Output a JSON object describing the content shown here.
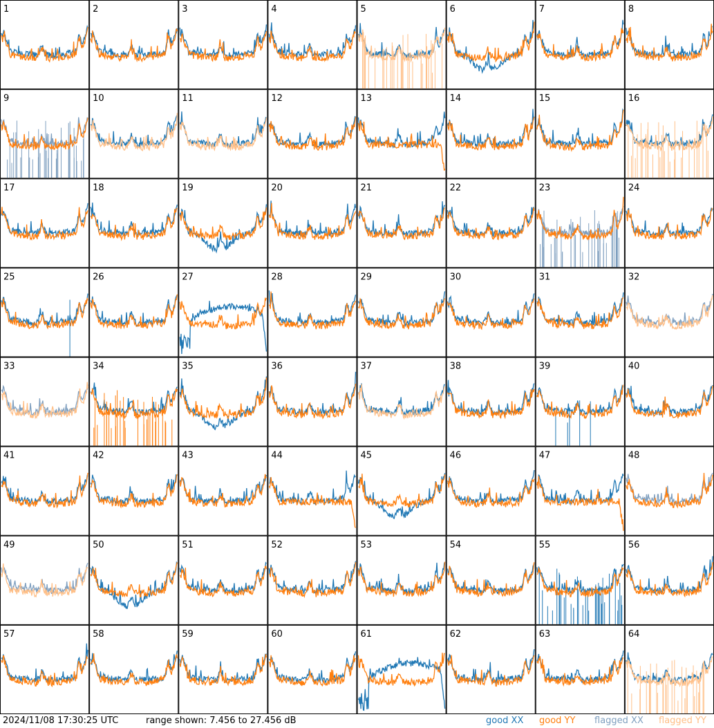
{
  "chart_data": {
    "type": "line",
    "layout_desc": "8x8 grid of antenna spectra panels",
    "panel_labels": [
      "1",
      "2",
      "3",
      "4",
      "5",
      "6",
      "7",
      "8",
      "9",
      "10",
      "11",
      "12",
      "13",
      "14",
      "15",
      "16",
      "17",
      "18",
      "19",
      "20",
      "21",
      "22",
      "23",
      "24",
      "25",
      "26",
      "27",
      "28",
      "29",
      "30",
      "31",
      "32",
      "33",
      "34",
      "35",
      "36",
      "37",
      "38",
      "39",
      "40",
      "41",
      "42",
      "43",
      "44",
      "45",
      "46",
      "47",
      "48",
      "49",
      "50",
      "51",
      "52",
      "53",
      "54",
      "55",
      "56",
      "57",
      "58",
      "59",
      "60",
      "61",
      "62",
      "63",
      "64"
    ],
    "ylim_db": [
      7.456,
      27.456
    ],
    "series_legend": [
      {
        "name": "good XX",
        "color": "#1f77b4"
      },
      {
        "name": "good YY",
        "color": "#ff7f0e"
      },
      {
        "name": "flagged XX",
        "color": "#7f9fbf"
      },
      {
        "name": "flagged YY",
        "color": "#ffbf87"
      }
    ],
    "panels": {
      "5": {
        "xx": "good",
        "yy": "flagged",
        "yy_spiky": true
      },
      "6": {
        "xx": "good",
        "yy": "good",
        "xx_dip": true
      },
      "9": {
        "xx": "flagged",
        "yy": "good",
        "xx_spiky": true
      },
      "10": {
        "xx": "good",
        "yy": "flagged"
      },
      "11": {
        "xx": "good",
        "yy": "flagged"
      },
      "13": {
        "yy_flat": true
      },
      "16": {
        "xx": "good",
        "yy": "flagged",
        "yy_spiky": true
      },
      "19": {
        "xx_dip": true
      },
      "23": {
        "xx": "flagged",
        "yy": "good",
        "xx_spiky": true
      },
      "25": {
        "xx_spike_line": true
      },
      "27": {
        "xx_hump": true
      },
      "32": {
        "xx": "flagged",
        "yy": "flagged"
      },
      "33": {
        "xx": "flagged",
        "yy": "flagged"
      },
      "34": {
        "xx": "good",
        "yy": "good",
        "yy_spiky": true
      },
      "35": {
        "xx_dip": true
      },
      "37": {
        "xx": "good",
        "yy": "flagged"
      },
      "39": {
        "xx_spiky_sparse": true
      },
      "44": {
        "yy_flat": true
      },
      "45": {
        "xx_dip": true
      },
      "47": {
        "yy_flat": true
      },
      "48": {
        "xx": "flagged",
        "yy": "good"
      },
      "49": {
        "xx": "flagged",
        "yy": "flagged"
      },
      "50": {
        "xx_dip": true
      },
      "55": {
        "xx_spiky": true
      },
      "61": {
        "xx_hump": true
      },
      "64": {
        "xx": "good",
        "yy": "flagged",
        "yy_spiky": true
      }
    }
  },
  "footer": {
    "timestamp": "2024/11/08 17:30:25 UTC",
    "range_text": "range shown: 7.456 to 27.456 dB",
    "legend_good_xx": "good XX",
    "legend_good_yy": "good YY",
    "legend_flagged_xx": "flagged XX",
    "legend_flagged_yy": "flagged YY",
    "color_good_xx": "#1f77b4",
    "color_good_yy": "#ff7f0e",
    "color_flagged_xx": "#7f9fbf",
    "color_flagged_yy": "#ffbf87"
  }
}
